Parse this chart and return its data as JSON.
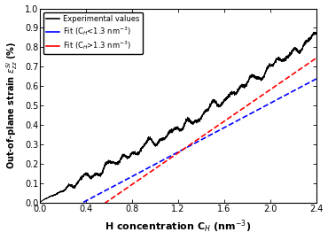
{
  "xlim": [
    0.0,
    2.4
  ],
  "ylim": [
    0.0,
    1.0
  ],
  "xticks": [
    0.0,
    0.4,
    0.8,
    1.2,
    1.6,
    2.0,
    2.4
  ],
  "yticks": [
    0.0,
    0.1,
    0.2,
    0.3,
    0.4,
    0.5,
    0.6,
    0.7,
    0.8,
    0.9,
    1.0
  ],
  "blue_fit_x0": 0.38,
  "blue_fit_x1": 2.4,
  "blue_fit_slope": 0.315,
  "blue_fit_intercept": -0.119,
  "red_fit_x0": 0.45,
  "red_fit_x1": 2.4,
  "red_fit_slope": 0.408,
  "red_fit_intercept": -0.235,
  "exp_inflection": 1.3,
  "exp_slope_low": 0.315,
  "exp_intercept_low": 0.0,
  "exp_slope_high": 0.408,
  "colors": {
    "experimental": "#000000",
    "blue_fit": "#0000ff",
    "red_fit": "#ff0000",
    "background": "#ffffff"
  },
  "legend_labels": [
    "Experimental values",
    "Fit (C_H<1.3 nm^{-3})",
    "Fit (C_H>1.3 nm^{-3})"
  ]
}
